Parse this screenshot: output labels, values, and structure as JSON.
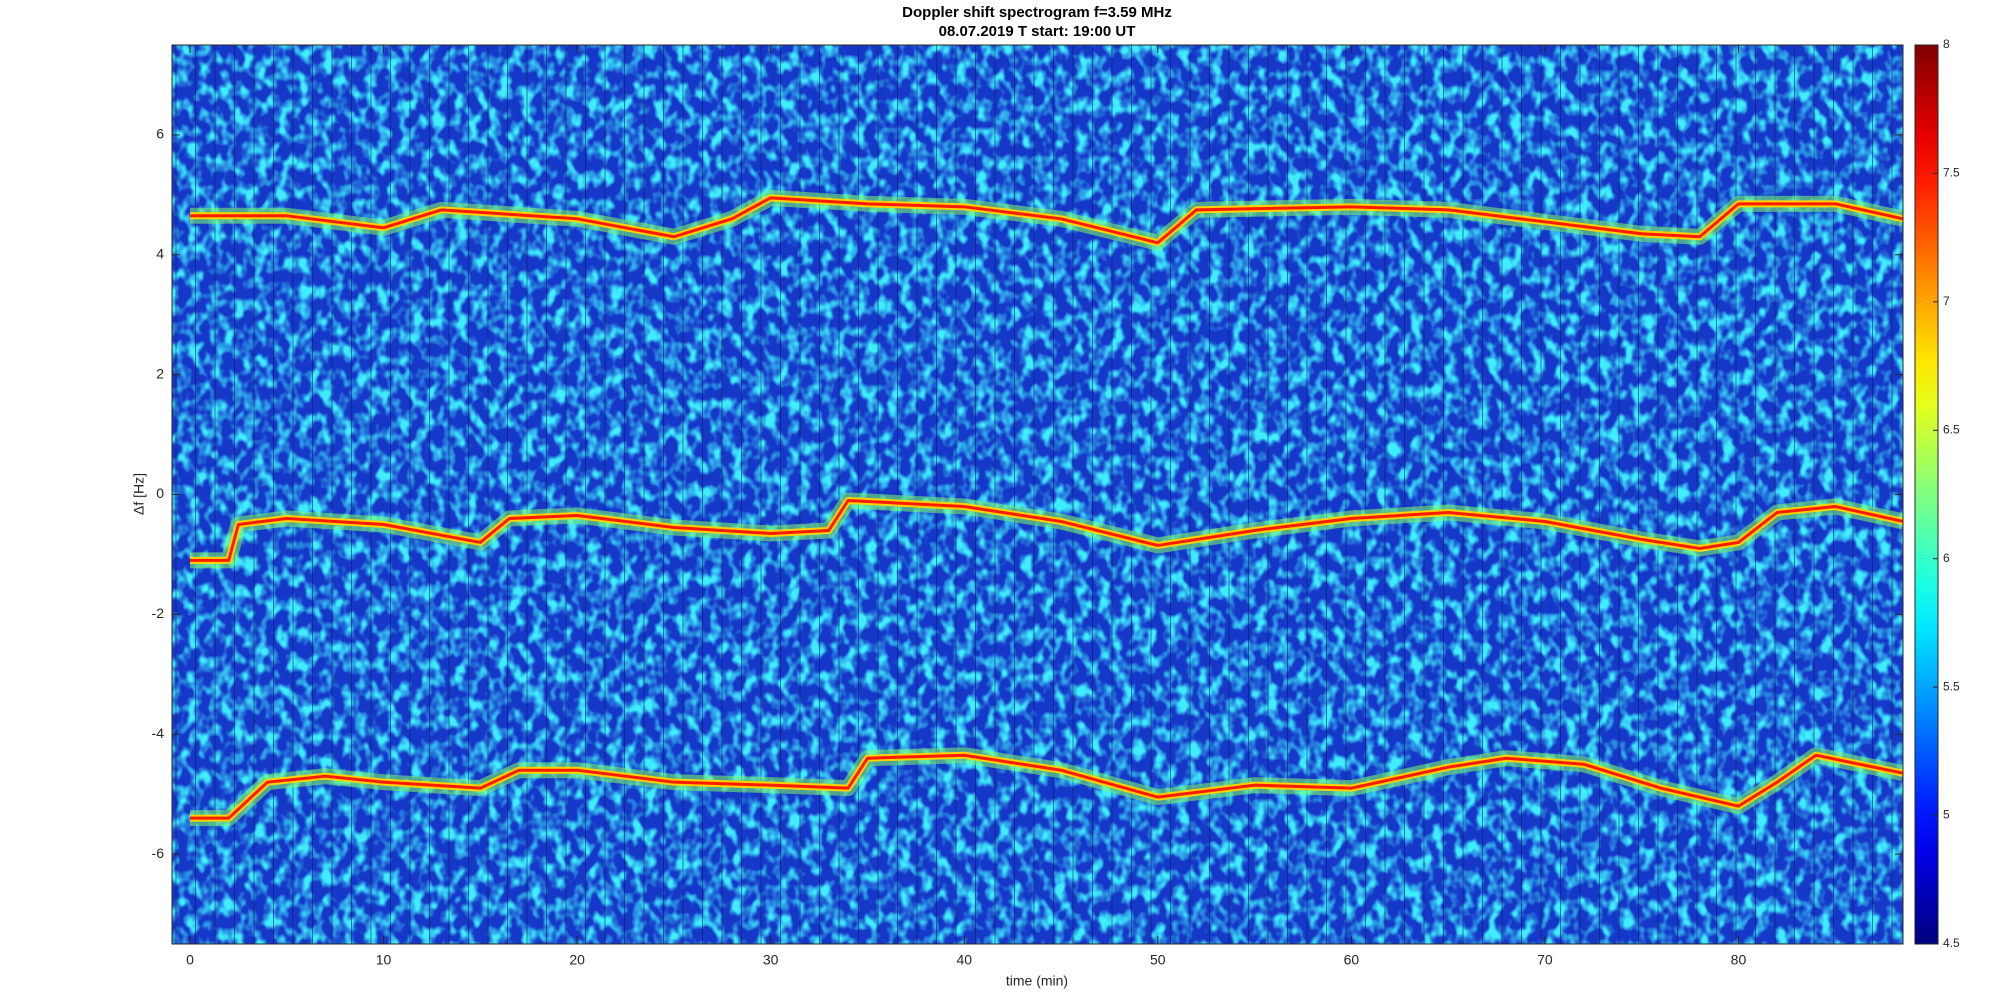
{
  "chart_data": {
    "type": "spectrogram",
    "title": "Doppler shift spectrogram f=3.59 MHz",
    "subtitle": "08.07.2019    T start: 19:00 UT",
    "x_label": "time (min)",
    "y_label": "Δf [Hz]",
    "xlim": [
      -0.93,
      88.5
    ],
    "xticks": [
      0,
      10,
      20,
      30,
      40,
      50,
      60,
      70,
      80
    ],
    "ylim": [
      -7.5,
      7.5
    ],
    "yticks": [
      -6,
      -4,
      -2,
      0,
      2,
      4,
      6
    ],
    "colormap": "jet",
    "clim": [
      4.5,
      8
    ],
    "cticks": [
      4.5,
      5,
      5.5,
      6,
      6.5,
      7,
      7.5,
      8
    ],
    "background_color": "#1638c8",
    "series": [
      {
        "color": "#ff1a00",
        "x": [
          0,
          5,
          10,
          13,
          20,
          25,
          28,
          30,
          35,
          40,
          45,
          50,
          52,
          60,
          65,
          70,
          75,
          78,
          80,
          85,
          88.5
        ],
        "values": [
          4.65,
          4.65,
          4.45,
          4.75,
          4.6,
          4.3,
          4.6,
          4.95,
          4.85,
          4.8,
          4.6,
          4.2,
          4.75,
          4.8,
          4.75,
          4.55,
          4.35,
          4.3,
          4.85,
          4.85,
          4.6
        ]
      },
      {
        "color": "#ff1a00",
        "x": [
          0,
          2,
          2.5,
          5,
          10,
          15,
          16.5,
          20,
          25,
          30,
          33,
          34,
          40,
          45,
          50,
          55,
          60,
          65,
          70,
          75,
          78,
          80,
          82,
          85,
          88.5
        ],
        "values": [
          -1.1,
          -1.1,
          -0.5,
          -0.4,
          -0.5,
          -0.8,
          -0.4,
          -0.35,
          -0.55,
          -0.65,
          -0.6,
          -0.1,
          -0.2,
          -0.45,
          -0.85,
          -0.6,
          -0.4,
          -0.3,
          -0.45,
          -0.75,
          -0.9,
          -0.8,
          -0.3,
          -0.2,
          -0.45
        ]
      },
      {
        "color": "#ff1a00",
        "x": [
          0,
          2,
          4,
          7,
          10,
          15,
          17,
          20,
          25,
          30,
          34,
          35,
          40,
          45,
          50,
          55,
          60,
          65,
          68,
          72,
          76,
          80,
          82,
          84,
          88.5
        ],
        "values": [
          -5.4,
          -5.4,
          -4.8,
          -4.7,
          -4.8,
          -4.9,
          -4.6,
          -4.6,
          -4.8,
          -4.85,
          -4.9,
          -4.4,
          -4.35,
          -4.6,
          -5.05,
          -4.85,
          -4.9,
          -4.55,
          -4.4,
          -4.5,
          -4.9,
          -5.2,
          -4.8,
          -4.35,
          -4.65
        ]
      }
    ]
  }
}
